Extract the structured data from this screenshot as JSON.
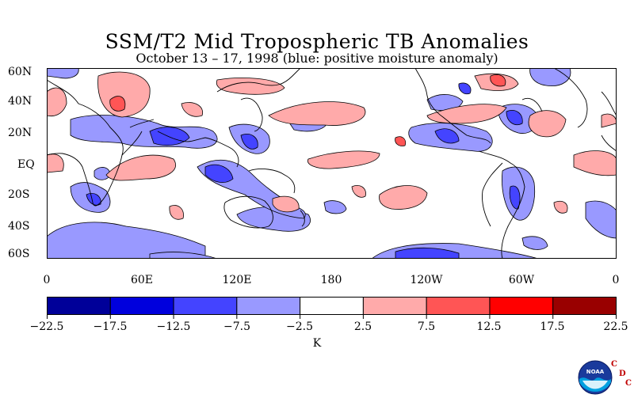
{
  "title": "SSM/T2 Mid Tropospheric TB Anomalies",
  "subtitle": "October 13 – 17, 1998 (blue: positive moisture anomaly)",
  "lat_labels": [
    "60N",
    "40N",
    "20N",
    "EQ",
    "20S",
    "40S",
    "60S"
  ],
  "lon_labels": [
    "0",
    "60E",
    "120E",
    "180",
    "120W",
    "60W",
    "0"
  ],
  "colorbar": {
    "ticks": [
      "−22.5",
      "−17.5",
      "−12.5",
      "−7.5",
      "−2.5",
      "2.5",
      "7.5",
      "12.5",
      "17.5",
      "22.5"
    ],
    "colors": [
      "#000099",
      "#0000dd",
      "#4444ff",
      "#9999ff",
      "#ffffff",
      "#ffaaaa",
      "#ff5555",
      "#ff0000",
      "#990000"
    ],
    "unit": "K"
  },
  "logo": {
    "icon": "noaa-logo-icon",
    "text": "NOAA",
    "letters": [
      "C",
      "D",
      "C"
    ]
  }
}
